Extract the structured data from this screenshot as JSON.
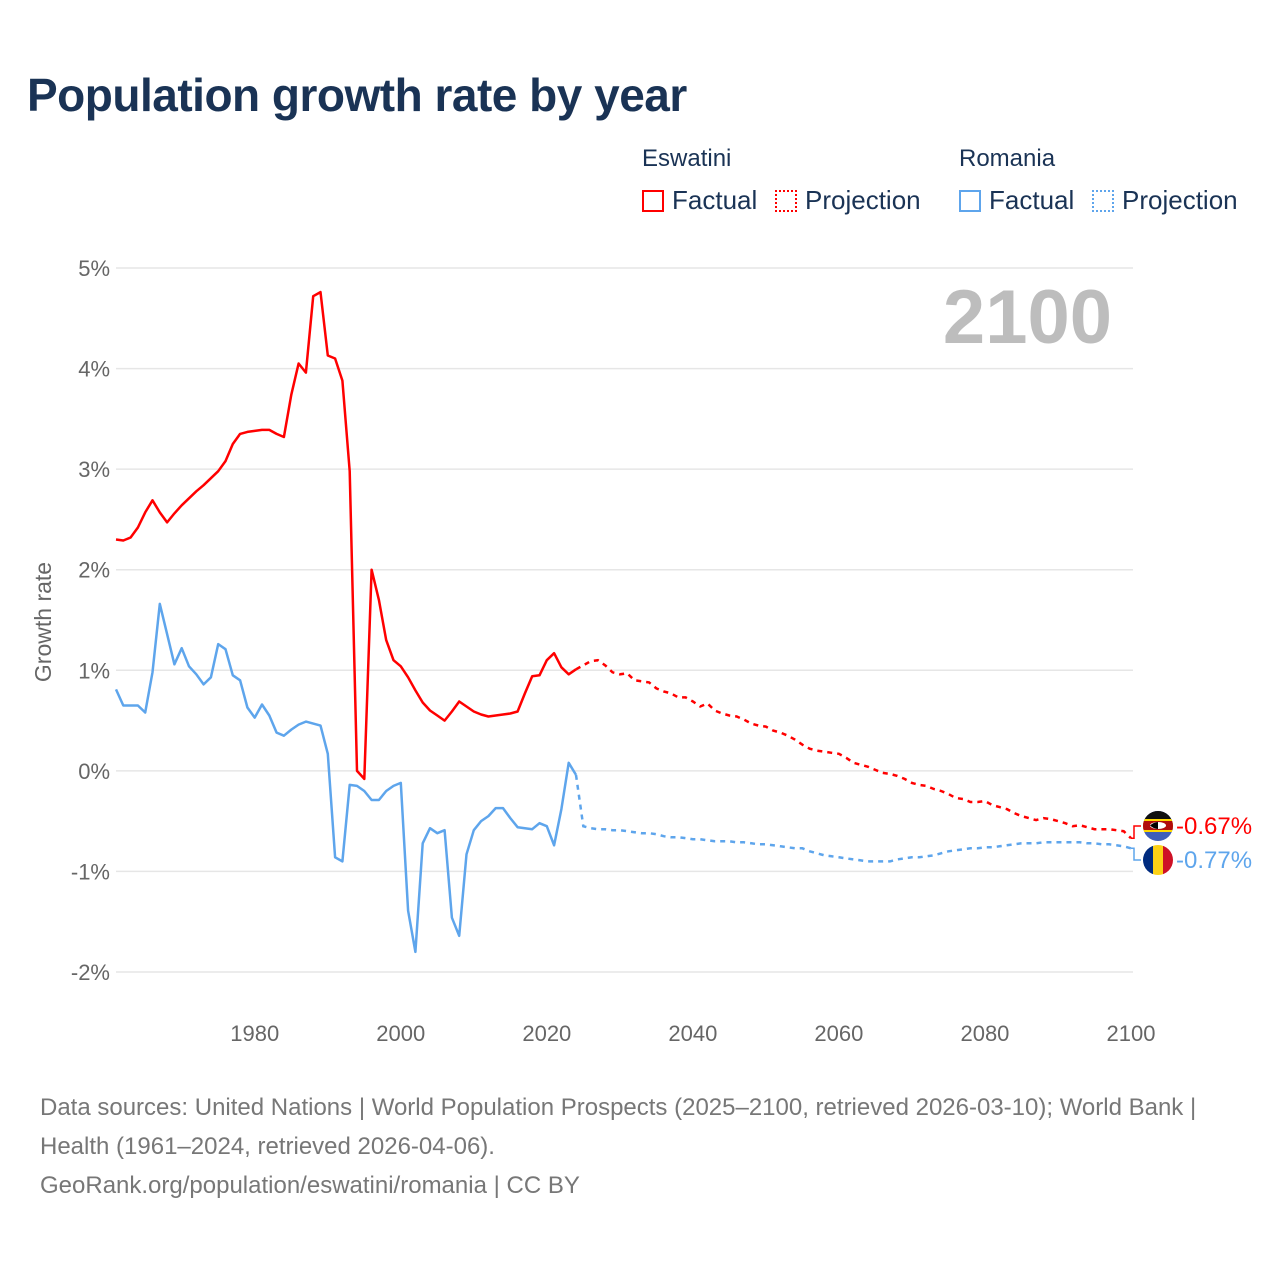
{
  "title": "Population growth rate by year",
  "legend": {
    "countries": [
      {
        "name": "Eswatini",
        "factual": "Factual",
        "projection": "Projection"
      },
      {
        "name": "Romania",
        "factual": "Factual",
        "projection": "Projection"
      }
    ]
  },
  "colors": {
    "eswatini": "#ff0000",
    "romania": "#5ea5ec",
    "title": "#1a3355"
  },
  "chart_data": {
    "type": "line",
    "title": "Population growth rate by year",
    "xlabel": "",
    "ylabel": "Growth rate",
    "xlim": [
      1961,
      2100
    ],
    "ylim": [
      -2,
      5
    ],
    "grid": true,
    "legend_position": "top-right",
    "x_ticks": [
      "1980",
      "2000",
      "2020",
      "2040",
      "2060",
      "2080",
      "2100"
    ],
    "y_ticks": [
      "5%",
      "4%",
      "3%",
      "2%",
      "1%",
      "0%",
      "-1%",
      "-2%"
    ],
    "year_annotation": "2100",
    "series": [
      {
        "name": "Eswatini",
        "factual_start_year": 1961,
        "factual": [
          2.3,
          2.29,
          2.32,
          2.42,
          2.57,
          2.69,
          2.57,
          2.47,
          2.56,
          2.64,
          2.71,
          2.78,
          2.84,
          2.91,
          2.98,
          3.08,
          3.25,
          3.35,
          3.37,
          3.38,
          3.39,
          3.39,
          3.35,
          3.32,
          3.74,
          4.05,
          3.96,
          4.72,
          4.76,
          4.13,
          4.1,
          3.88,
          2.98,
          0.0,
          -0.08,
          2.0,
          1.7,
          1.3,
          1.1,
          1.04,
          0.93,
          0.8,
          0.68,
          0.6,
          0.55,
          0.5,
          0.59,
          0.69,
          0.64,
          0.59,
          0.56,
          0.54,
          0.55,
          0.56,
          0.57,
          0.59,
          0.77,
          0.94,
          0.95,
          1.1,
          1.17,
          1.03,
          0.96,
          1.01
        ],
        "projection_start_year": 2024,
        "projection": [
          1.01,
          1.05,
          1.09,
          1.1,
          1.05,
          0.98,
          0.96,
          0.97,
          0.9,
          0.89,
          0.88,
          0.82,
          0.79,
          0.77,
          0.73,
          0.73,
          0.69,
          0.64,
          0.67,
          0.6,
          0.57,
          0.55,
          0.54,
          0.51,
          0.47,
          0.45,
          0.44,
          0.4,
          0.38,
          0.35,
          0.31,
          0.26,
          0.22,
          0.2,
          0.19,
          0.18,
          0.17,
          0.13,
          0.08,
          0.06,
          0.04,
          0.01,
          -0.02,
          -0.03,
          -0.05,
          -0.08,
          -0.12,
          -0.14,
          -0.15,
          -0.18,
          -0.2,
          -0.23,
          -0.27,
          -0.28,
          -0.31,
          -0.31,
          -0.3,
          -0.34,
          -0.36,
          -0.38,
          -0.42,
          -0.45,
          -0.47,
          -0.49,
          -0.47,
          -0.48,
          -0.5,
          -0.52,
          -0.55,
          -0.54,
          -0.56,
          -0.58,
          -0.58,
          -0.58,
          -0.59,
          -0.6,
          -0.67
        ],
        "end_label": "-0.67%"
      },
      {
        "name": "Romania",
        "factual_start_year": 1961,
        "factual": [
          0.81,
          0.65,
          0.65,
          0.65,
          0.58,
          0.98,
          1.66,
          1.36,
          1.06,
          1.22,
          1.04,
          0.96,
          0.86,
          0.93,
          1.26,
          1.21,
          0.95,
          0.9,
          0.63,
          0.53,
          0.66,
          0.55,
          0.38,
          0.35,
          0.41,
          0.46,
          0.49,
          0.47,
          0.45,
          0.17,
          -0.86,
          -0.9,
          -0.14,
          -0.15,
          -0.2,
          -0.29,
          -0.29,
          -0.2,
          -0.15,
          -0.12,
          -1.39,
          -1.8,
          -0.72,
          -0.57,
          -0.62,
          -0.59,
          -1.46,
          -1.64,
          -0.83,
          -0.59,
          -0.5,
          -0.45,
          -0.37,
          -0.37,
          -0.47,
          -0.56,
          -0.57,
          -0.58,
          -0.52,
          -0.55,
          -0.74,
          -0.38,
          0.08,
          -0.04
        ],
        "projection_start_year": 2024,
        "projection": [
          -0.04,
          -0.55,
          -0.57,
          -0.58,
          -0.58,
          -0.59,
          -0.59,
          -0.6,
          -0.61,
          -0.62,
          -0.62,
          -0.63,
          -0.65,
          -0.66,
          -0.66,
          -0.67,
          -0.68,
          -0.68,
          -0.69,
          -0.7,
          -0.7,
          -0.7,
          -0.71,
          -0.71,
          -0.72,
          -0.73,
          -0.73,
          -0.74,
          -0.75,
          -0.76,
          -0.77,
          -0.77,
          -0.8,
          -0.82,
          -0.84,
          -0.85,
          -0.86,
          -0.87,
          -0.88,
          -0.89,
          -0.9,
          -0.9,
          -0.9,
          -0.9,
          -0.88,
          -0.87,
          -0.86,
          -0.86,
          -0.85,
          -0.84,
          -0.82,
          -0.8,
          -0.79,
          -0.78,
          -0.77,
          -0.77,
          -0.76,
          -0.76,
          -0.75,
          -0.74,
          -0.73,
          -0.72,
          -0.72,
          -0.72,
          -0.71,
          -0.71,
          -0.71,
          -0.71,
          -0.71,
          -0.71,
          -0.72,
          -0.72,
          -0.73,
          -0.73,
          -0.74,
          -0.75,
          -0.77
        ],
        "end_label": "-0.77%"
      }
    ]
  },
  "footer": {
    "sources": "Data sources: United Nations | World Population Prospects (2025–2100, retrieved 2026-03-10); World Bank | Health (1961–2024, retrieved 2026-04-06).",
    "credit": "GeoRank.org/population/eswatini/romania | CC BY"
  }
}
